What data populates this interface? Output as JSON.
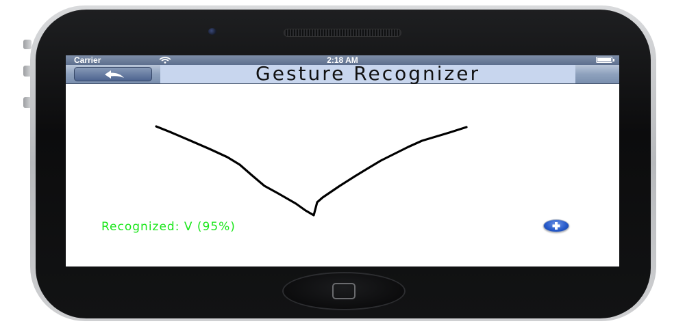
{
  "status_bar": {
    "carrier": "Carrier",
    "time": "2:18 AM",
    "wifi_icon": "wifi-icon",
    "battery_icon": "battery-icon"
  },
  "nav_bar": {
    "title": "Gesture Recognizer",
    "back_icon": "back-arrow-icon"
  },
  "main": {
    "recognized_label": "Recognized: V (95%)",
    "add_icon": "plus-icon"
  },
  "colors": {
    "recognized_text": "#19e619",
    "nav_bar": "#8ea1bd",
    "stroke": "#000000"
  }
}
